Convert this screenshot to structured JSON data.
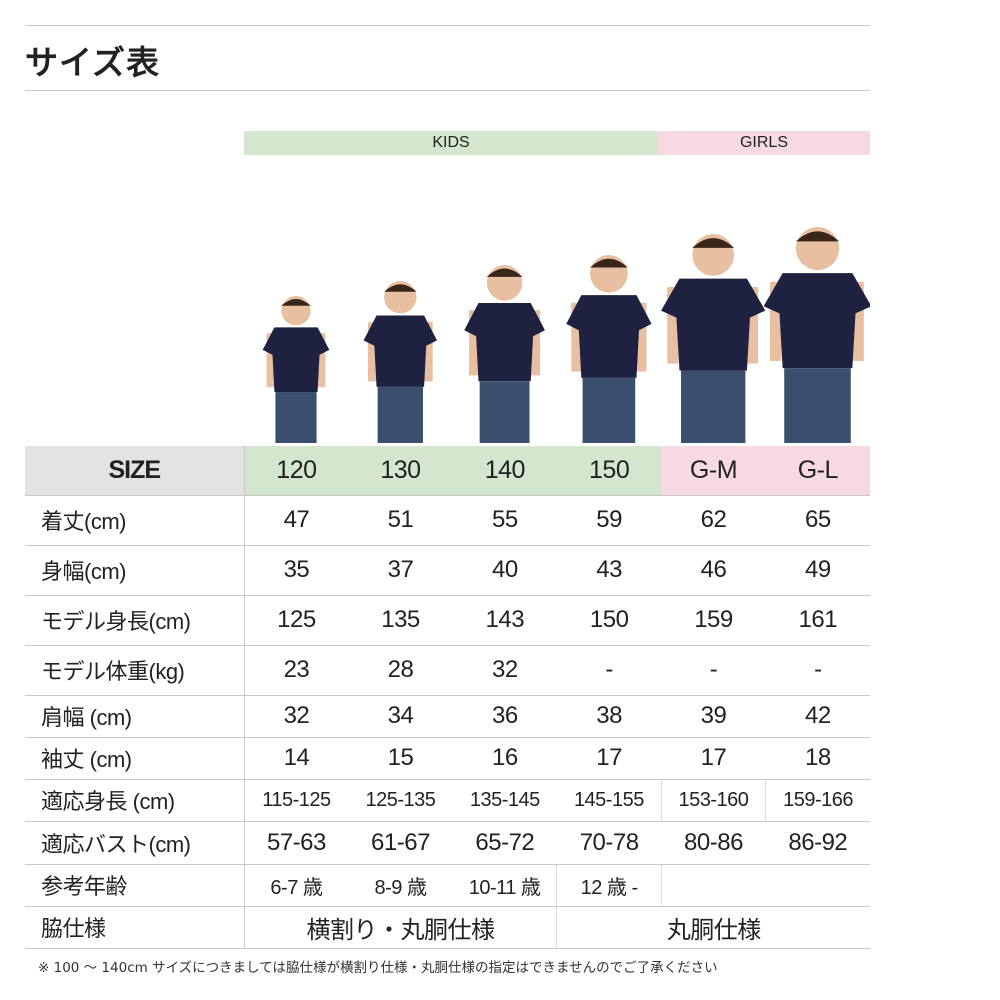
{
  "title": "サイズ表",
  "groups": {
    "kids": "KIDS",
    "girls": "GIRLS"
  },
  "colors": {
    "kids": "#d5e6cf",
    "girls": "#f6d9e1",
    "size_header": "#e3e3e3",
    "shirt": "#1e2140",
    "jeans": "#3a4f6e"
  },
  "table": {
    "size_label": "SIZE",
    "sizes": [
      "120",
      "130",
      "140",
      "150",
      "G-M",
      "G-L"
    ],
    "rows": [
      {
        "label": "着丈(cm)",
        "values": [
          "47",
          "51",
          "55",
          "59",
          "62",
          "65"
        ]
      },
      {
        "label": "身幅(cm)",
        "values": [
          "35",
          "37",
          "40",
          "43",
          "46",
          "49"
        ]
      },
      {
        "label": "モデル身長(cm)",
        "values": [
          "125",
          "135",
          "143",
          "150",
          "159",
          "161"
        ]
      },
      {
        "label": "モデル体重(kg)",
        "values": [
          "23",
          "28",
          "32",
          "-",
          "-",
          "-"
        ]
      },
      {
        "label": "肩幅 (cm)",
        "values": [
          "32",
          "34",
          "36",
          "38",
          "39",
          "42"
        ]
      },
      {
        "label": "袖丈 (cm)",
        "values": [
          "14",
          "15",
          "16",
          "17",
          "17",
          "18"
        ]
      },
      {
        "label": "適応身長 (cm)",
        "values": [
          "115-125",
          "125-135",
          "135-145",
          "145-155",
          "153-160",
          "159-166"
        ]
      },
      {
        "label": "適応バスト(cm)",
        "values": [
          "57-63",
          "61-67",
          "65-72",
          "70-78",
          "80-86",
          "86-92"
        ]
      },
      {
        "label": "参考年齢",
        "values": [
          "6-7 歳",
          "8-9 歳",
          "10-11 歳",
          "12 歳 -",
          ""
        ]
      },
      {
        "label": "脇仕様",
        "values": [
          "横割り・丸胴仕様",
          "丸胴仕様"
        ]
      }
    ]
  },
  "note": "※ 100 ～ 140cm サイズにつきましては脇仕様が横割り仕様・丸胴仕様の指定はできませんのでご了承ください"
}
